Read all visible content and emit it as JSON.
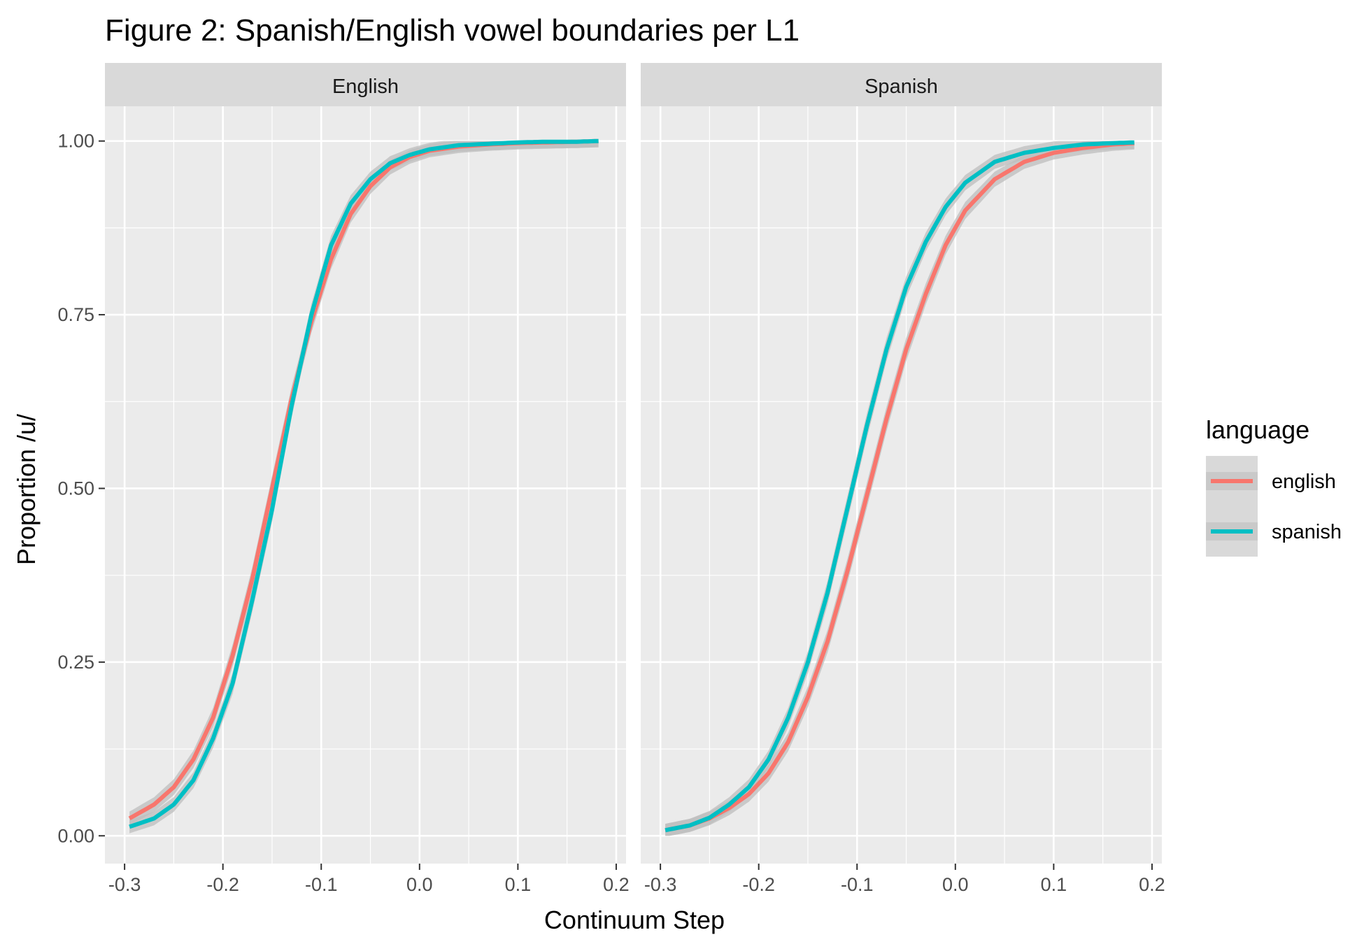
{
  "chart_data": {
    "type": "line",
    "title": "Figure 2: Spanish/English vowel boundaries per L1",
    "xlabel": "Continuum Step",
    "ylabel": "Proportion /u/",
    "xlim": [
      -0.32,
      0.21
    ],
    "ylim": [
      -0.04,
      1.05
    ],
    "x_ticks": [
      -0.3,
      -0.2,
      -0.1,
      0.0,
      0.1,
      0.2
    ],
    "x_tick_labels": [
      "-0.3",
      "-0.2",
      "-0.1",
      "0.0",
      "0.1",
      "0.2"
    ],
    "y_ticks": [
      0.0,
      0.25,
      0.5,
      0.75,
      1.0
    ],
    "y_tick_labels": [
      "0.00",
      "0.25",
      "0.50",
      "0.75",
      "1.00"
    ],
    "grid": true,
    "legend": {
      "title": "language",
      "position": "right"
    },
    "series_colors": {
      "english": "#F8766D",
      "spanish": "#00BFC4"
    },
    "ribbon_color": "#BEBEBE",
    "panel_background": "#EBEBEB",
    "strip_background": "#D9D9D9",
    "facets": [
      {
        "label": "English",
        "series": [
          {
            "name": "english",
            "x": [
              -0.295,
              -0.27,
              -0.25,
              -0.23,
              -0.21,
              -0.19,
              -0.17,
              -0.15,
              -0.13,
              -0.11,
              -0.09,
              -0.07,
              -0.05,
              -0.03,
              -0.01,
              0.01,
              0.04,
              0.07,
              0.1,
              0.13,
              0.16,
              0.182
            ],
            "y": [
              0.025,
              0.045,
              0.07,
              0.11,
              0.17,
              0.26,
              0.37,
              0.5,
              0.63,
              0.74,
              0.83,
              0.895,
              0.935,
              0.962,
              0.977,
              0.986,
              0.992,
              0.995,
              0.997,
              0.998,
              0.999,
              1.0
            ]
          },
          {
            "name": "spanish",
            "x": [
              -0.295,
              -0.27,
              -0.25,
              -0.23,
              -0.21,
              -0.19,
              -0.17,
              -0.15,
              -0.13,
              -0.11,
              -0.09,
              -0.07,
              -0.05,
              -0.03,
              -0.01,
              0.01,
              0.04,
              0.07,
              0.1,
              0.13,
              0.16,
              0.182
            ],
            "y": [
              0.013,
              0.025,
              0.045,
              0.08,
              0.14,
              0.22,
              0.34,
              0.47,
              0.62,
              0.75,
              0.85,
              0.91,
              0.945,
              0.968,
              0.98,
              0.988,
              0.994,
              0.996,
              0.998,
              0.999,
              0.999,
              1.0
            ]
          }
        ]
      },
      {
        "label": "Spanish",
        "series": [
          {
            "name": "english",
            "x": [
              -0.295,
              -0.27,
              -0.25,
              -0.23,
              -0.21,
              -0.19,
              -0.17,
              -0.15,
              -0.13,
              -0.11,
              -0.09,
              -0.07,
              -0.05,
              -0.03,
              -0.01,
              0.01,
              0.04,
              0.07,
              0.1,
              0.13,
              0.16,
              0.182
            ],
            "y": [
              0.008,
              0.015,
              0.025,
              0.04,
              0.06,
              0.09,
              0.135,
              0.2,
              0.28,
              0.38,
              0.49,
              0.6,
              0.7,
              0.78,
              0.85,
              0.9,
              0.945,
              0.97,
              0.983,
              0.99,
              0.995,
              0.997
            ]
          },
          {
            "name": "spanish",
            "x": [
              -0.295,
              -0.27,
              -0.25,
              -0.23,
              -0.21,
              -0.19,
              -0.17,
              -0.15,
              -0.13,
              -0.11,
              -0.09,
              -0.07,
              -0.05,
              -0.03,
              -0.01,
              0.01,
              0.04,
              0.07,
              0.1,
              0.13,
              0.16,
              0.182
            ],
            "y": [
              0.008,
              0.015,
              0.026,
              0.045,
              0.07,
              0.11,
              0.17,
              0.25,
              0.35,
              0.47,
              0.59,
              0.7,
              0.79,
              0.855,
              0.905,
              0.94,
              0.97,
              0.983,
              0.99,
              0.995,
              0.997,
              0.998
            ]
          }
        ]
      }
    ]
  }
}
